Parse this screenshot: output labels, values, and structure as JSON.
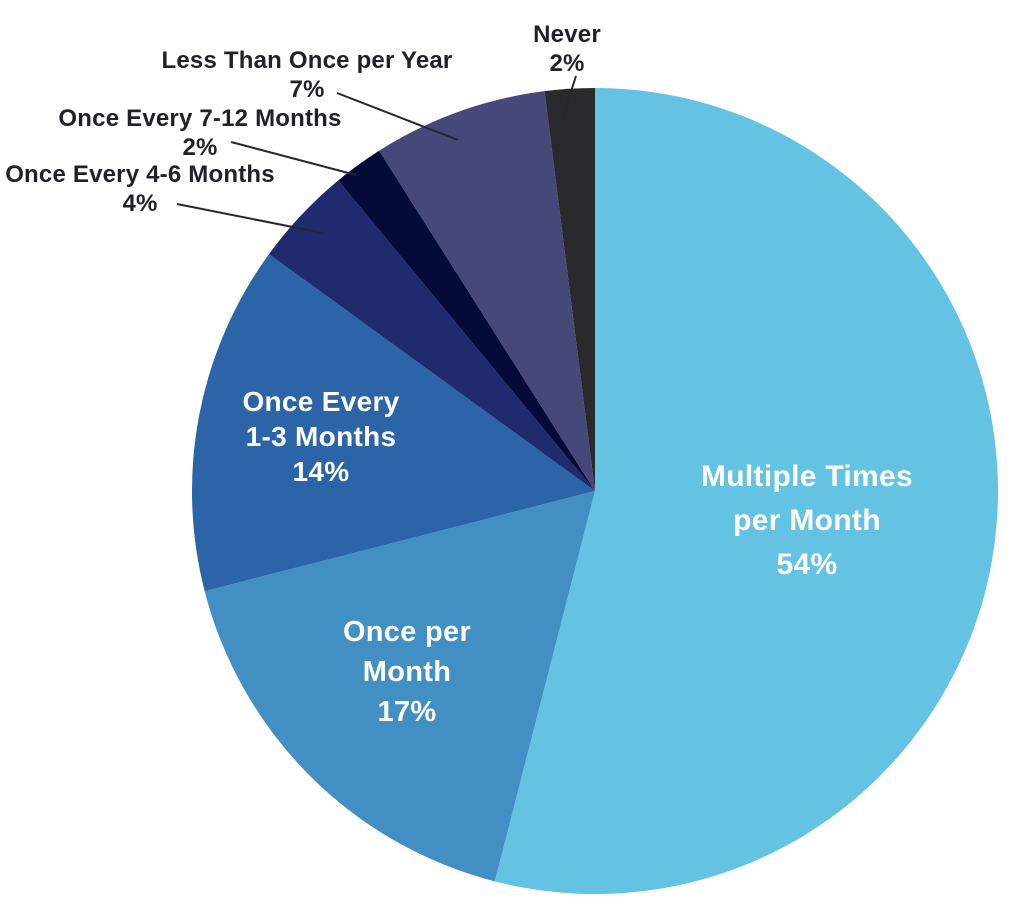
{
  "chart_data": {
    "type": "pie",
    "title": "",
    "legend": "none",
    "background": "#FFFFFF",
    "start_angle_deg": 0,
    "direction": "clockwise",
    "text_color": "#232127",
    "inside_label_color": "#FFFFFF",
    "leader_line_color": "#29262E",
    "slices": [
      {
        "key": "multiple-times-per-month",
        "label": "Multiple Times per Month",
        "label_lines": [
          "Multiple Times",
          "per Month"
        ],
        "value": 54,
        "pct_label": "54%",
        "color": "#64C2E2",
        "label_placement": "inside"
      },
      {
        "key": "once-per-month",
        "label": "Once per Month",
        "label_lines": [
          "Once per",
          "Month"
        ],
        "value": 17,
        "pct_label": "17%",
        "color": "#428FC4",
        "label_placement": "inside"
      },
      {
        "key": "once-every-1-3-months",
        "label": "Once Every 1-3 Months",
        "label_lines": [
          "Once Every",
          "1-3 Months"
        ],
        "value": 14,
        "pct_label": "14%",
        "color": "#2C64A8",
        "label_placement": "inside"
      },
      {
        "key": "once-every-4-6-months",
        "label": "Once Every 4-6 Months",
        "label_lines": [
          "Once Every 4-6 Months"
        ],
        "value": 4,
        "pct_label": "4%",
        "color": "#202B6F",
        "label_placement": "outside"
      },
      {
        "key": "once-every-7-12-months",
        "label": "Once Every 7-12 Months",
        "label_lines": [
          "Once Every 7-12 Months"
        ],
        "value": 2,
        "pct_label": "2%",
        "color": "#040B38",
        "label_placement": "outside"
      },
      {
        "key": "less-than-once-per-year",
        "label": "Less Than Once per Year",
        "label_lines": [
          "Less Than Once per Year"
        ],
        "value": 7,
        "pct_label": "7%",
        "color": "#454879",
        "label_placement": "outside"
      },
      {
        "key": "never",
        "label": "Never",
        "label_lines": [
          "Never"
        ],
        "value": 2,
        "pct_label": "2%",
        "color": "#292A2C",
        "label_placement": "outside"
      }
    ]
  }
}
